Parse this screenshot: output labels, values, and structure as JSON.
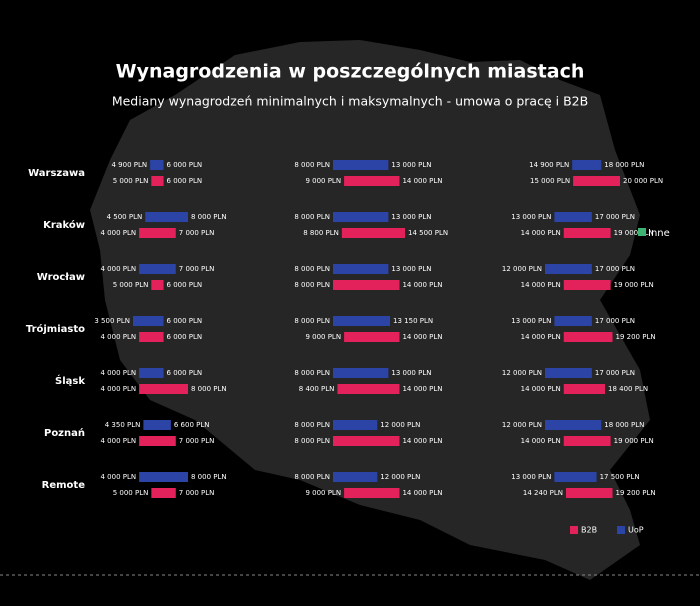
{
  "chart_data": {
    "type": "range_bar",
    "title": "Wynagrodzenia w poszczególnych miastach",
    "subtitle": "Mediany wynagrodzeń minimalnych i maksymalnych - umowa o pracę i B2B",
    "categories": [
      "Warszawa",
      "Kraków",
      "Wrocław",
      "Trójmiasto",
      "Śląsk",
      "Poznań",
      "Remote"
    ],
    "series": [
      {
        "name": "UoP",
        "color": "#2b44a6",
        "values": [
          [
            [
              4900,
              6000
            ],
            [
              4500,
              8000
            ],
            [
              4000,
              7000
            ],
            [
              3500,
              6000
            ],
            [
              4000,
              6000
            ],
            [
              4350,
              6600
            ],
            [
              4000,
              8000
            ]
          ],
          [
            [
              8000,
              13000
            ],
            [
              8000,
              13000
            ],
            [
              8000,
              13000
            ],
            [
              8000,
              13150
            ],
            [
              8000,
              13000
            ],
            [
              8000,
              12000
            ],
            [
              8000,
              12000
            ]
          ],
          [
            [
              14900,
              18000
            ],
            [
              13000,
              17000
            ],
            [
              12000,
              17000
            ],
            [
              13000,
              17000
            ],
            [
              12000,
              17000
            ],
            [
              12000,
              18000
            ],
            [
              13000,
              17500
            ]
          ]
        ],
        "value_labels": [
          [
            [
              "4 900 PLN",
              "6 000 PLN"
            ],
            [
              "4 500 PLN",
              "8 000 PLN"
            ],
            [
              "4 000 PLN",
              "7 000 PLN"
            ],
            [
              "3 500 PLN",
              "6 000 PLN"
            ],
            [
              "4 000 PLN",
              "6 000 PLN"
            ],
            [
              "4 350 PLN",
              "6 600 PLN"
            ],
            [
              "4 000 PLN",
              "8 000 PLN"
            ]
          ],
          [
            [
              "8 000 PLN",
              "13 000 PLN"
            ],
            [
              "8 000 PLN",
              "13 000 PLN"
            ],
            [
              "8 000 PLN",
              "13 000 PLN"
            ],
            [
              "8 000 PLN",
              "13 150 PLN"
            ],
            [
              "8 000 PLN",
              "13 000 PLN"
            ],
            [
              "8 000 PLN",
              "12 000 PLN"
            ],
            [
              "8 000 PLN",
              "12 000 PLN"
            ]
          ],
          [
            [
              "14 900 PLN",
              "18 000 PLN"
            ],
            [
              "13 000 PLN",
              "17 000 PLN"
            ],
            [
              "12 000 PLN",
              "17 000 PLN"
            ],
            [
              "13 000 PLN",
              "17 000 PLN"
            ],
            [
              "12 000 PLN",
              "17 000 PLN"
            ],
            [
              "12 000 PLN",
              "18 000 PLN"
            ],
            [
              "13 000 PLN",
              "17 500 PLN"
            ]
          ]
        ]
      },
      {
        "name": "B2B",
        "color": "#e3225c",
        "values": [
          [
            [
              5000,
              6000
            ],
            [
              4000,
              7000
            ],
            [
              5000,
              6000
            ],
            [
              4000,
              6000
            ],
            [
              4000,
              8000
            ],
            [
              4000,
              7000
            ],
            [
              5000,
              7000
            ]
          ],
          [
            [
              9000,
              14000
            ],
            [
              8800,
              14500
            ],
            [
              8000,
              14000
            ],
            [
              9000,
              14000
            ],
            [
              8400,
              14000
            ],
            [
              8000,
              14000
            ],
            [
              9000,
              14000
            ]
          ],
          [
            [
              15000,
              20000
            ],
            [
              14000,
              19000
            ],
            [
              14000,
              19000
            ],
            [
              14000,
              19200
            ],
            [
              14000,
              18400
            ],
            [
              14000,
              19000
            ],
            [
              14240,
              19200
            ]
          ]
        ],
        "value_labels": [
          [
            [
              "5 000 PLN",
              "6 000 PLN"
            ],
            [
              "4 000 PLN",
              "7 000 PLN"
            ],
            [
              "5 000 PLN",
              "6 000 PLN"
            ],
            [
              "4 000 PLN",
              "6 000 PLN"
            ],
            [
              "4 000 PLN",
              "8 000 PLN"
            ],
            [
              "4 000 PLN",
              "7 000 PLN"
            ],
            [
              "5 000 PLN",
              "7 000 PLN"
            ]
          ],
          [
            [
              "9 000 PLN",
              "14 000 PLN"
            ],
            [
              "8 800 PLN",
              "14 500 PLN"
            ],
            [
              "8 000 PLN",
              "14 000 PLN"
            ],
            [
              "9 000 PLN",
              "14 000 PLN"
            ],
            [
              "8 400 PLN",
              "14 000 PLN"
            ],
            [
              "8 000 PLN",
              "14 000 PLN"
            ],
            [
              "9 000 PLN",
              "14 000 PLN"
            ]
          ],
          [
            [
              "15 000 PLN",
              "20 000 PLN"
            ],
            [
              "14 000 PLN",
              "19 000 PLN"
            ],
            [
              "14 000 PLN",
              "19 000 PLN"
            ],
            [
              "14 000 PLN",
              "19 200 PLN"
            ],
            [
              "14 000 PLN",
              "18 400 PLN"
            ],
            [
              "14 000 PLN",
              "19 000 PLN"
            ],
            [
              "14 240 PLN",
              "19 200 PLN"
            ]
          ]
        ]
      }
    ],
    "extra_legend": {
      "name": "Inne",
      "color": "#3cb371"
    }
  }
}
